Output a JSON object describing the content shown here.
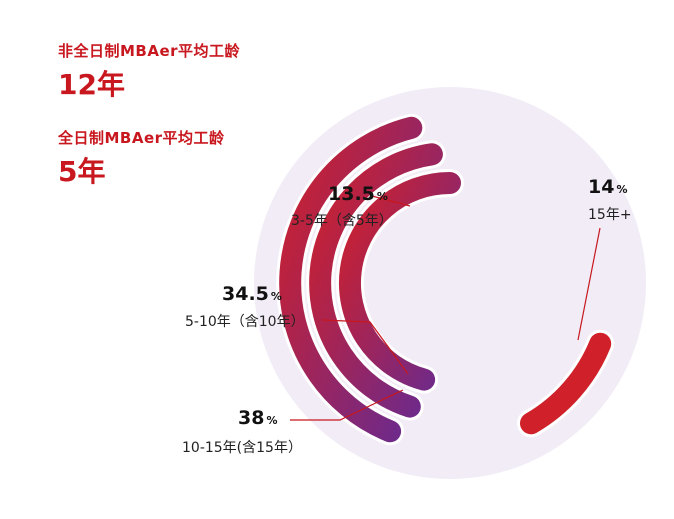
{
  "stats": {
    "parttime": {
      "label": "非全日制MBAer平均工龄",
      "value": "12年"
    },
    "fulltime": {
      "label": "全日制MBAer平均工龄",
      "value": "5年"
    }
  },
  "chart_data": {
    "type": "radial_bar",
    "title": "",
    "unit": "%",
    "categories": [
      "3-5年（含5年）",
      "5-10年（含10年）",
      "10-15年(含15年）",
      "15年+"
    ],
    "values": [
      13.5,
      34.5,
      38,
      14
    ],
    "value_labels": [
      "13.5",
      "34.5",
      "38",
      "14"
    ],
    "colors": {
      "start": "#d0202a",
      "end": "#6a2a8e",
      "backdrop": "#f2ecf6"
    }
  }
}
